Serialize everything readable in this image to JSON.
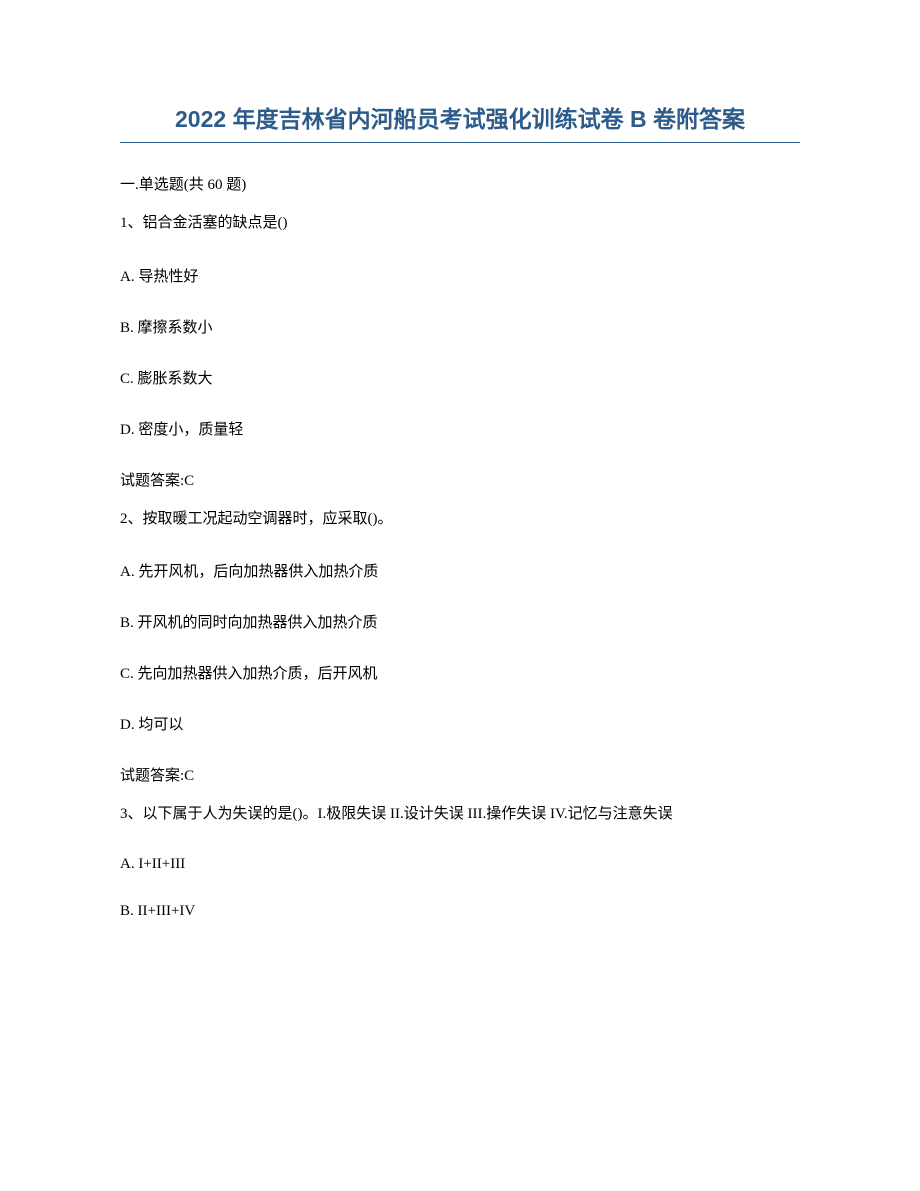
{
  "title": "2022 年度吉林省内河船员考试强化训练试卷 B 卷附答案",
  "section_header": "一.单选题(共 60 题)",
  "questions": [
    {
      "number": "1、",
      "text": "铝合金活塞的缺点是()",
      "options": {
        "A": "A. 导热性好",
        "B": "B. 摩擦系数小",
        "C": "C. 膨胀系数大",
        "D": "D. 密度小，质量轻"
      },
      "answer": "试题答案:C"
    },
    {
      "number": "2、",
      "text": "按取暖工况起动空调器时，应采取()。",
      "options": {
        "A": "A. 先开风机，后向加热器供入加热介质",
        "B": "B. 开风机的同时向加热器供入加热介质",
        "C": "C. 先向加热器供入加热介质，后开风机",
        "D": "D. 均可以"
      },
      "answer": "试题答案:C"
    },
    {
      "number": "3、",
      "text": "以下属于人为失误的是()。I.极限失误 II.设计失误 III.操作失误 IV.记忆与注意失误",
      "options": {
        "A": "A. I+II+III",
        "B": "B. II+III+IV"
      }
    }
  ],
  "styles": {
    "title_color": "#2e5c8a",
    "title_fontsize": 23,
    "body_fontsize": 15,
    "text_color": "#000000",
    "background_color": "#ffffff",
    "underline_color": "#2e5c8a"
  }
}
